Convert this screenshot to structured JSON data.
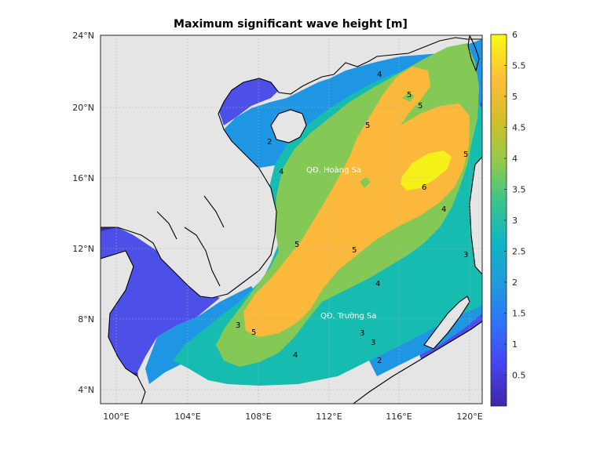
{
  "title": "Maximum significant wave height [m]",
  "map": {
    "lon_range": [
      99.2,
      120.8
    ],
    "lat_range": [
      3.2,
      24.1
    ],
    "lon_ticks": [
      "100°E",
      "104°E",
      "108°E",
      "112°E",
      "116°E",
      "120°E"
    ],
    "lat_ticks": [
      "4°N",
      "8°N",
      "12°N",
      "16°N",
      "20°N",
      "24°N"
    ],
    "land_color": "#e5e5e5",
    "grid": true
  },
  "colorbar": {
    "min": 0,
    "max": 6,
    "ticks": [
      "0.5",
      "1",
      "1.5",
      "2",
      "2.5",
      "3",
      "3.5",
      "4",
      "4.5",
      "5",
      "5.5",
      "6"
    ],
    "colormap": "parula",
    "stops": [
      "#3e26a8",
      "#4743f0",
      "#2f72fa",
      "#209bdb",
      "#0eb6c4",
      "#3bc38a",
      "#93cb4a",
      "#d3be27",
      "#fdbe3d",
      "#f9fb0e"
    ]
  },
  "fill_levels": {
    "level_0_1": "#3f2b9e",
    "level_1_2": "#4c4fe8",
    "level_2_3": "#1f96e4",
    "level_3_4": "#17bcb1",
    "level_4_5": "#84c955",
    "level_5_6": "#fbb83a",
    "level_6_plus": "#f5f118"
  },
  "contour_labels": [
    "4",
    "5",
    "5",
    "2",
    "4",
    "6",
    "5",
    "5",
    "4",
    "5",
    "4",
    "5",
    "4",
    "3",
    "3",
    "2",
    "3",
    "5",
    "3"
  ],
  "place_labels": {
    "paracel": "QĐ. Hoàng Sa",
    "spratly": "QĐ. Trường Sa"
  }
}
